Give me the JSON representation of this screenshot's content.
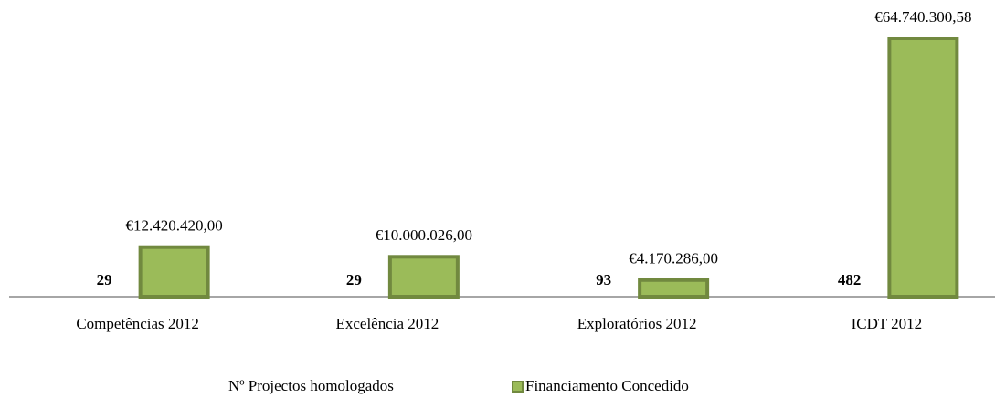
{
  "chart_data": {
    "type": "bar",
    "categories": [
      "Competências 2012",
      "Excelência 2012",
      "Exploratórios 2012",
      "ICDT 2012"
    ],
    "series": [
      {
        "name": "Nº Projectos homologados",
        "values": [
          29,
          29,
          93,
          482
        ]
      },
      {
        "name": "Financiamento Concedido",
        "color": "#9bbb59",
        "values": [
          12420420.0,
          10000026.0,
          4170286.0,
          64740300.58
        ],
        "value_labels": [
          "€12.420.420,00",
          "€10.000.026,00",
          "€4.170.286,00",
          "€64.740.300,58"
        ]
      }
    ],
    "legend": "bottom"
  }
}
